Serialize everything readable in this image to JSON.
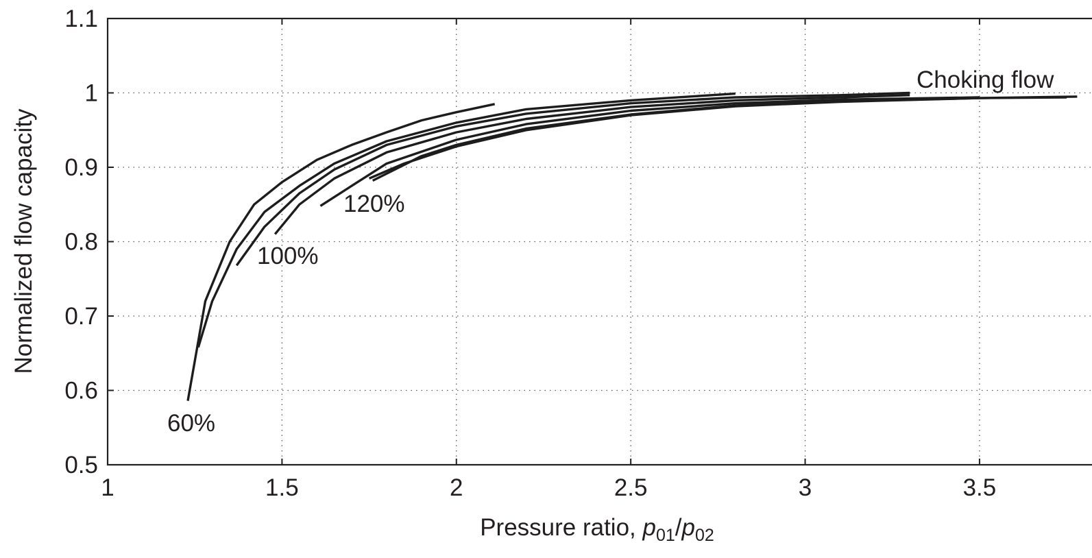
{
  "chart_data": {
    "type": "line",
    "title": "",
    "xlabel": {
      "prefix": "Pressure ratio, ",
      "num_var": "p",
      "num_sub": "01",
      "slash": "/",
      "den_var": "p",
      "den_sub": "02"
    },
    "ylabel": "Normalized flow capacity",
    "xlim": [
      1,
      3.85
    ],
    "ylim": [
      0.5,
      1.1
    ],
    "grid": true,
    "x_ticks": [
      1,
      1.5,
      2,
      2.5,
      3,
      3.5
    ],
    "x_tick_labels": [
      "1",
      "1.5",
      "2",
      "2.5",
      "3",
      "3.5"
    ],
    "y_ticks": [
      0.5,
      0.6,
      0.7,
      0.8,
      0.9,
      1.0,
      1.1
    ],
    "y_tick_labels": [
      "0.5",
      "0.6",
      "0.7",
      "0.8",
      "0.9",
      "1",
      "1.1"
    ],
    "annotations": {
      "choking": "Choking flow",
      "s60": "60%",
      "s100": "100%",
      "s120": "120%"
    },
    "series": [
      {
        "points": [
          [
            1.23,
            0.586
          ],
          [
            1.28,
            0.72
          ],
          [
            1.35,
            0.8
          ],
          [
            1.42,
            0.85
          ],
          [
            1.5,
            0.88
          ],
          [
            1.6,
            0.91
          ],
          [
            1.7,
            0.93
          ],
          [
            1.8,
            0.947
          ],
          [
            1.9,
            0.963
          ],
          [
            2.0,
            0.974
          ],
          [
            2.11,
            0.985
          ]
        ]
      },
      {
        "points": [
          [
            1.26,
            0.658
          ],
          [
            1.3,
            0.72
          ],
          [
            1.37,
            0.79
          ],
          [
            1.45,
            0.84
          ],
          [
            1.55,
            0.875
          ],
          [
            1.65,
            0.905
          ],
          [
            1.8,
            0.935
          ],
          [
            2.0,
            0.96
          ],
          [
            2.2,
            0.978
          ],
          [
            2.5,
            0.99
          ],
          [
            2.8,
            0.999
          ]
        ]
      },
      {
        "points": [
          [
            1.37,
            0.768
          ],
          [
            1.45,
            0.82
          ],
          [
            1.55,
            0.865
          ],
          [
            1.65,
            0.897
          ],
          [
            1.8,
            0.93
          ],
          [
            2.0,
            0.955
          ],
          [
            2.2,
            0.972
          ],
          [
            2.5,
            0.986
          ],
          [
            2.8,
            0.994
          ],
          [
            3.1,
            0.997
          ],
          [
            3.3,
            1.0
          ]
        ]
      },
      {
        "points": [
          [
            1.48,
            0.81
          ],
          [
            1.55,
            0.85
          ],
          [
            1.65,
            0.885
          ],
          [
            1.8,
            0.92
          ],
          [
            2.0,
            0.947
          ],
          [
            2.2,
            0.965
          ],
          [
            2.5,
            0.981
          ],
          [
            2.8,
            0.99
          ],
          [
            3.1,
            0.994
          ],
          [
            3.3,
            0.997
          ]
        ]
      },
      {
        "points": [
          [
            1.61,
            0.848
          ],
          [
            1.7,
            0.875
          ],
          [
            1.8,
            0.905
          ],
          [
            2.0,
            0.937
          ],
          [
            2.2,
            0.958
          ],
          [
            2.5,
            0.976
          ],
          [
            2.8,
            0.986
          ],
          [
            3.1,
            0.991
          ],
          [
            3.5,
            0.994
          ]
        ]
      },
      {
        "points": [
          [
            1.76,
            0.882
          ],
          [
            1.9,
            0.915
          ],
          [
            2.0,
            0.93
          ],
          [
            2.2,
            0.952
          ],
          [
            2.5,
            0.971
          ],
          [
            2.8,
            0.983
          ],
          [
            3.1,
            0.989
          ],
          [
            3.5,
            0.993
          ],
          [
            3.78,
            0.995
          ]
        ]
      },
      {
        "points": [
          [
            1.75,
            0.885
          ],
          [
            1.85,
            0.905
          ],
          [
            2.0,
            0.928
          ],
          [
            2.2,
            0.95
          ],
          [
            2.5,
            0.97
          ],
          [
            2.8,
            0.982
          ],
          [
            3.1,
            0.988
          ],
          [
            3.5,
            0.993
          ],
          [
            3.75,
            0.994
          ]
        ]
      }
    ]
  }
}
